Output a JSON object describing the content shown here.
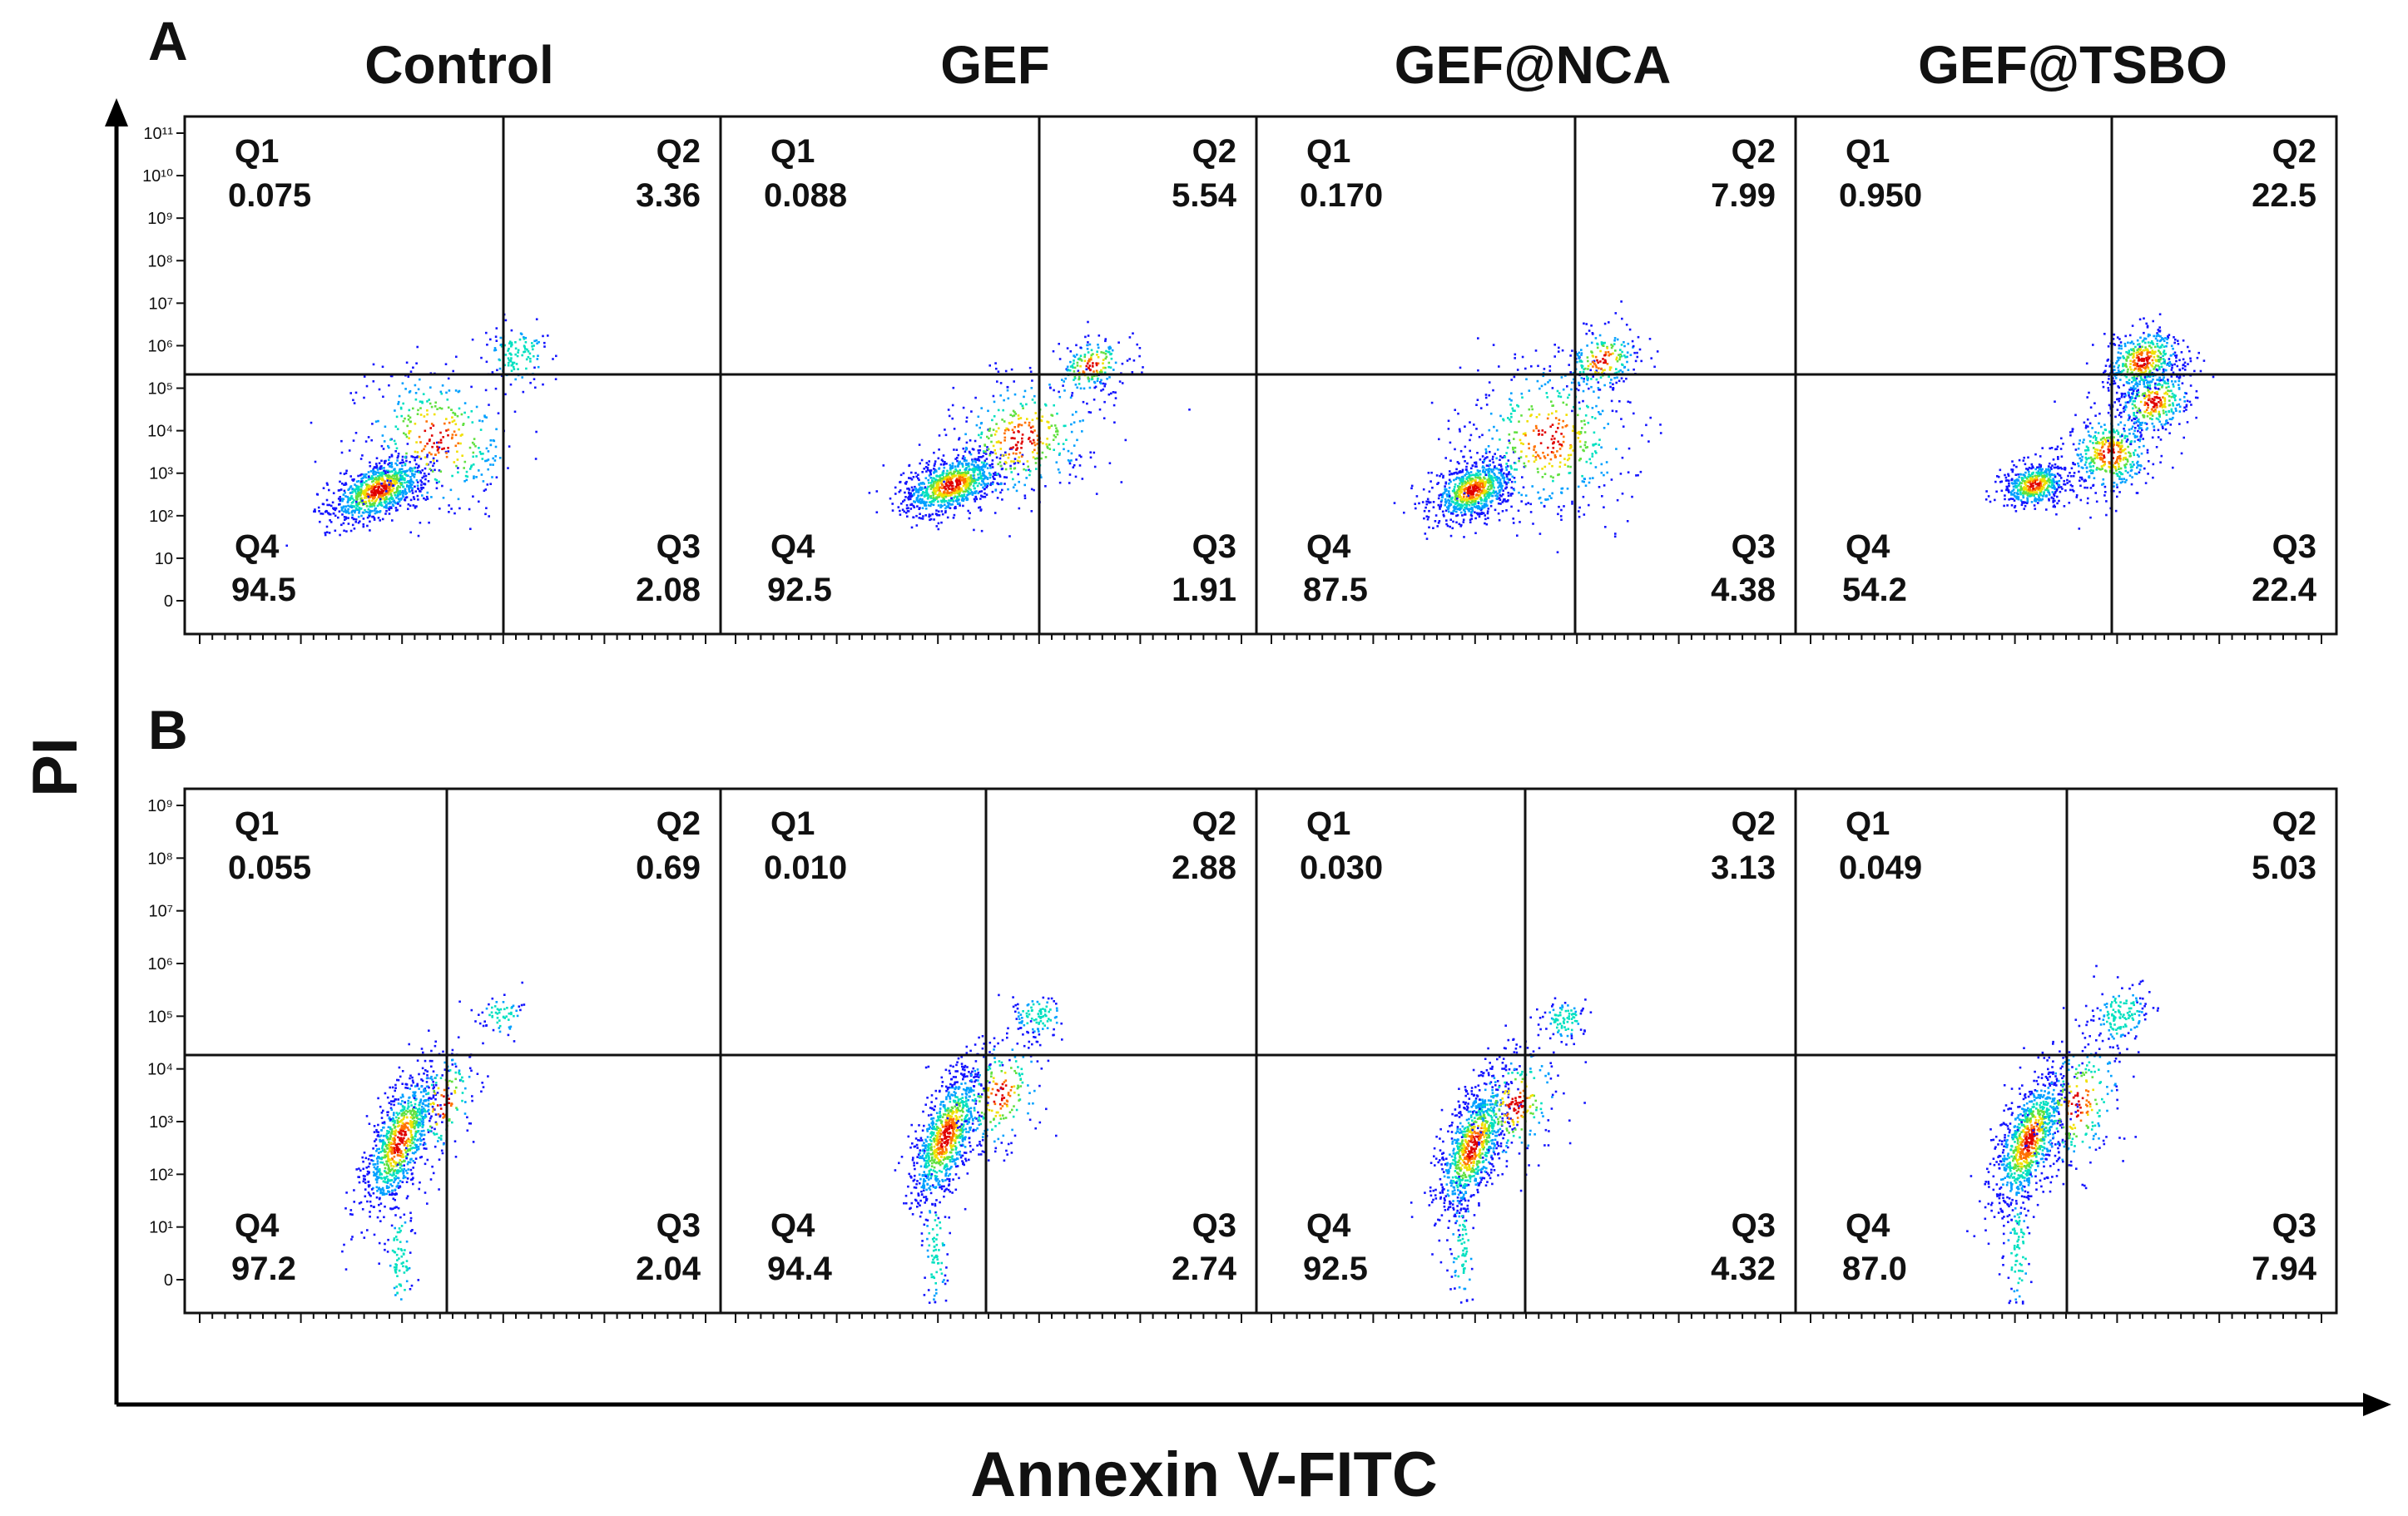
{
  "axes": {
    "xlabel": "Annexin V-FITC",
    "ylabel": "PI"
  },
  "chart_data": [
    {
      "type": "scatter",
      "panel": "A",
      "xlabel": "Annexin V-FITC",
      "ylabel": "PI",
      "y_tick_labels": [
        "0",
        "10",
        "10²",
        "10³",
        "10⁴",
        "10⁵",
        "10⁶",
        "10⁷",
        "10⁸",
        "10⁹",
        "10¹⁰",
        "10¹¹"
      ],
      "plots": [
        {
          "title": "Control",
          "quadrants": [
            {
              "label": "Q1",
              "value": "0.075"
            },
            {
              "label": "Q2",
              "value": "3.36"
            },
            {
              "label": "Q3",
              "value": "2.08"
            },
            {
              "label": "Q4",
              "value": "94.5"
            }
          ]
        },
        {
          "title": "GEF",
          "quadrants": [
            {
              "label": "Q1",
              "value": "0.088"
            },
            {
              "label": "Q2",
              "value": "5.54"
            },
            {
              "label": "Q3",
              "value": "1.91"
            },
            {
              "label": "Q4",
              "value": "92.5"
            }
          ]
        },
        {
          "title": "GEF@NCA",
          "quadrants": [
            {
              "label": "Q1",
              "value": "0.170"
            },
            {
              "label": "Q2",
              "value": "7.99"
            },
            {
              "label": "Q3",
              "value": "4.38"
            },
            {
              "label": "Q4",
              "value": "87.5"
            }
          ]
        },
        {
          "title": "GEF@TSBO",
          "quadrants": [
            {
              "label": "Q1",
              "value": "0.950"
            },
            {
              "label": "Q2",
              "value": "22.5"
            },
            {
              "label": "Q3",
              "value": "22.4"
            },
            {
              "label": "Q4",
              "value": "54.2"
            }
          ]
        }
      ]
    },
    {
      "type": "scatter",
      "panel": "B",
      "xlabel": "Annexin V-FITC",
      "ylabel": "PI",
      "y_tick_labels": [
        "0",
        "10¹",
        "10²",
        "10³",
        "10⁴",
        "10⁵",
        "10⁶",
        "10⁷",
        "10⁸",
        "10⁹"
      ],
      "plots": [
        {
          "title": "Control",
          "quadrants": [
            {
              "label": "Q1",
              "value": "0.055"
            },
            {
              "label": "Q2",
              "value": "0.69"
            },
            {
              "label": "Q3",
              "value": "2.04"
            },
            {
              "label": "Q4",
              "value": "97.2"
            }
          ]
        },
        {
          "title": "GEF",
          "quadrants": [
            {
              "label": "Q1",
              "value": "0.010"
            },
            {
              "label": "Q2",
              "value": "2.88"
            },
            {
              "label": "Q3",
              "value": "2.74"
            },
            {
              "label": "Q4",
              "value": "94.4"
            }
          ]
        },
        {
          "title": "GEF@NCA",
          "quadrants": [
            {
              "label": "Q1",
              "value": "0.030"
            },
            {
              "label": "Q2",
              "value": "3.13"
            },
            {
              "label": "Q3",
              "value": "4.32"
            },
            {
              "label": "Q4",
              "value": "92.5"
            }
          ]
        },
        {
          "title": "GEF@TSBO",
          "quadrants": [
            {
              "label": "Q1",
              "value": "0.049"
            },
            {
              "label": "Q2",
              "value": "5.03"
            },
            {
              "label": "Q3",
              "value": "7.94"
            },
            {
              "label": "Q4",
              "value": "87.0"
            }
          ]
        }
      ]
    }
  ],
  "colors": {
    "axis": "#000000",
    "density": [
      "#1414ff",
      "#00a0ff",
      "#00e0c0",
      "#60e040",
      "#f0e000",
      "#ff7000",
      "#e00000"
    ]
  }
}
